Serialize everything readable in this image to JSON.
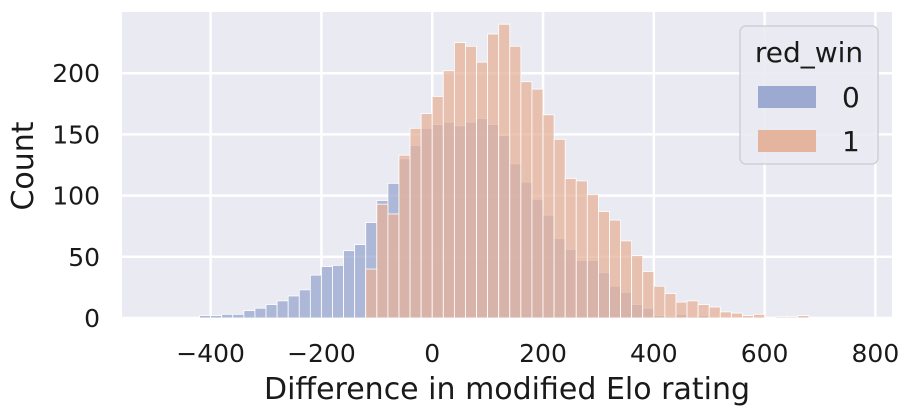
{
  "chart_data": {
    "type": "histogram",
    "xlabel": "Difference in modified Elo rating",
    "ylabel": "Count",
    "xlim": [
      -560,
      830
    ],
    "ylim": [
      0,
      250
    ],
    "xticks": [
      "−400",
      "−200",
      "0",
      "200",
      "400",
      "600",
      "800"
    ],
    "xtick_values": [
      -400,
      -200,
      0,
      200,
      400,
      600,
      800
    ],
    "yticks": [
      "0",
      "50",
      "100",
      "150",
      "200"
    ],
    "ytick_values": [
      0,
      50,
      100,
      150,
      200
    ],
    "grid": true,
    "legend": {
      "title": "red_win",
      "placement": "top-right",
      "entries": [
        {
          "label": "0",
          "color": "#98a6cf"
        },
        {
          "label": "1",
          "color": "#e5b19a"
        }
      ]
    },
    "bin_start": -520,
    "bin_width": 20,
    "series": [
      {
        "name": "0",
        "color": "#98a6cf",
        "values": [
          0,
          0,
          0,
          0,
          0,
          2,
          2,
          3,
          3,
          6,
          8,
          11,
          14,
          18,
          23,
          35,
          42,
          43,
          55,
          60,
          78,
          96,
          110,
          130,
          141,
          155,
          158,
          160,
          157,
          160,
          163,
          158,
          149,
          126,
          111,
          97,
          84,
          65,
          56,
          47,
          47,
          37,
          26,
          21,
          11,
          8,
          2,
          1,
          3,
          1,
          2,
          0,
          0,
          0,
          0,
          0,
          0,
          0,
          0,
          0,
          0,
          0,
          0,
          0,
          0,
          0,
          0,
          0,
          0
        ]
      },
      {
        "name": "1",
        "color": "#e5b19a",
        "values": [
          0,
          0,
          0,
          0,
          0,
          0,
          0,
          0,
          0,
          0,
          0,
          0,
          0,
          0,
          0,
          0,
          0,
          0,
          0,
          0,
          40,
          93,
          85,
          133,
          155,
          167,
          181,
          202,
          225,
          222,
          209,
          232,
          240,
          222,
          193,
          187,
          166,
          146,
          114,
          112,
          101,
          87,
          80,
          63,
          51,
          38,
          26,
          20,
          13,
          14,
          11,
          9,
          5,
          4,
          2,
          3,
          0,
          1,
          1,
          2,
          0,
          0,
          0,
          0,
          0,
          0,
          0,
          0,
          0
        ]
      }
    ]
  }
}
